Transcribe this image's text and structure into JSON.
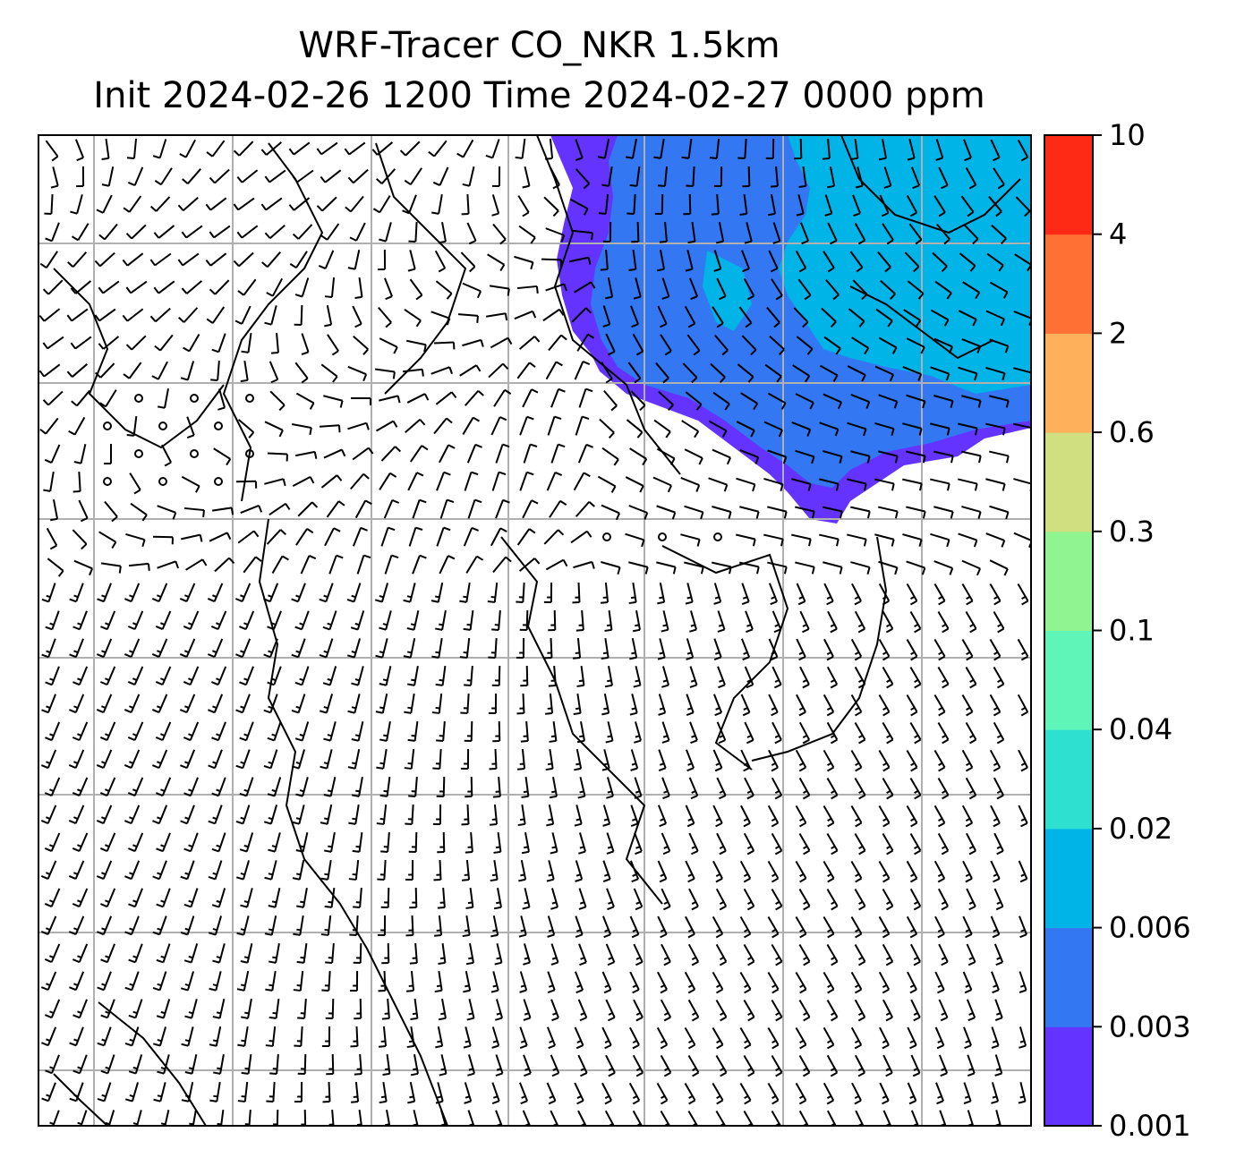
{
  "chart_data": {
    "type": "heatmap",
    "title": "WRF-Tracer CO_NKR 1.5km",
    "subtitle": "Init 2024-02-26 1200 Time 2024-02-27 0000 ppm",
    "xlabel": "",
    "ylabel": "",
    "grid": true,
    "overlay": [
      "wind barbs",
      "coastlines"
    ],
    "colorbar": {
      "placement": "right",
      "levels": [
        0.001,
        0.003,
        0.006,
        0.02,
        0.04,
        0.1,
        0.3,
        0.6,
        2,
        4,
        10
      ],
      "tick_labels": [
        "0.001",
        "0.003",
        "0.006",
        "0.02",
        "0.04",
        "0.1",
        "0.3",
        "0.6",
        "2",
        "4",
        "10"
      ],
      "colors": [
        "#6433ff",
        "#3377f2",
        "#00b4e8",
        "#2ee0d0",
        "#60f5b8",
        "#90f590",
        "#d0e080",
        "#ffb05a",
        "#ff7035",
        "#ff2a15"
      ]
    },
    "plume": {
      "location": "north-east",
      "max_level_shown": 0.02,
      "colors": [
        "#6433ff",
        "#3377f2",
        "#00b4e8"
      ]
    }
  }
}
